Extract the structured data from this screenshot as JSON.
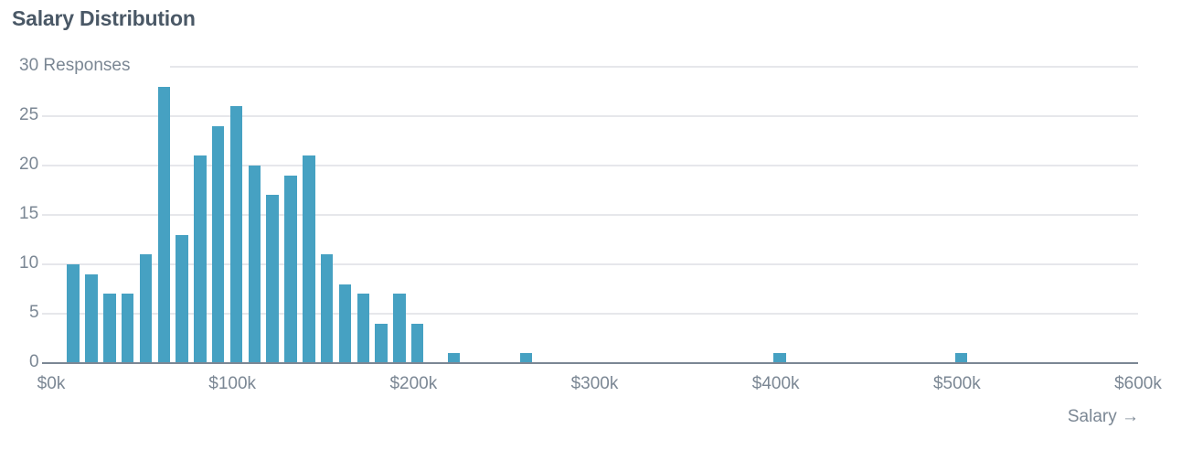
{
  "title": "Salary Distribution",
  "colors": {
    "bar": "#46a1c2",
    "grid": "#e6e7eb",
    "axis": "#7b8794",
    "title": "#4a5866"
  },
  "chart_data": {
    "type": "bar",
    "title": "Salary Distribution",
    "xlabel": "Salary →",
    "ylabel": "Responses",
    "y_top_label": "30 Responses",
    "ylim": [
      0,
      30
    ],
    "xlim": [
      0,
      600
    ],
    "grid": true,
    "bin_width_k": 10,
    "y_ticks": [
      "0",
      "5",
      "10",
      "15",
      "20",
      "25",
      "30"
    ],
    "x_ticks": [
      "$0k",
      "$100k",
      "$200k",
      "$300k",
      "$400k",
      "$500k",
      "$600k"
    ],
    "categories": [
      "$10k",
      "$20k",
      "$30k",
      "$40k",
      "$50k",
      "$60k",
      "$70k",
      "$80k",
      "$90k",
      "$100k",
      "$110k",
      "$120k",
      "$130k",
      "$140k",
      "$150k",
      "$160k",
      "$170k",
      "$180k",
      "$190k",
      "$200k",
      "$220k",
      "$260k",
      "$400k",
      "$500k"
    ],
    "x": [
      10,
      20,
      30,
      40,
      50,
      60,
      70,
      80,
      90,
      100,
      110,
      120,
      130,
      140,
      150,
      160,
      170,
      180,
      190,
      200,
      220,
      260,
      400,
      500
    ],
    "values": [
      10,
      9,
      7,
      7,
      11,
      28,
      13,
      21,
      24,
      26,
      20,
      17,
      19,
      21,
      11,
      8,
      7,
      4,
      7,
      4,
      1,
      1,
      1,
      1
    ]
  }
}
